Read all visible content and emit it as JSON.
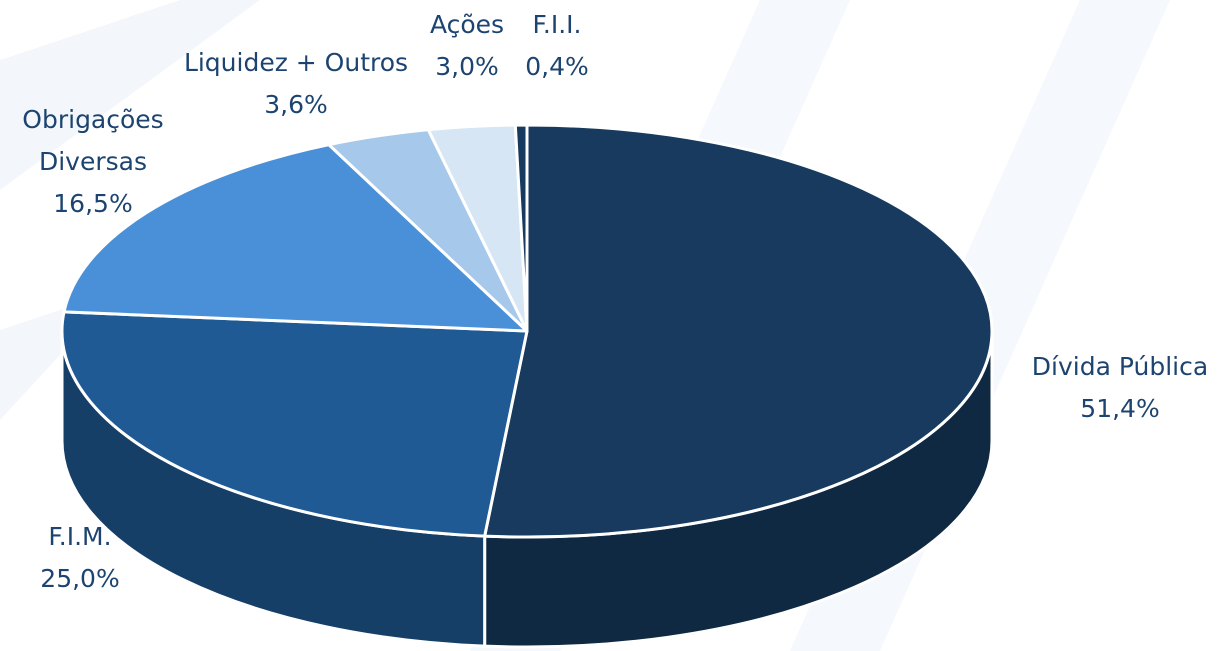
{
  "chart_data": {
    "type": "pie3d",
    "categories": [
      "Dívida Pública",
      "F.I.M.",
      "Obrigações Diversas",
      "Liquidez + Outros",
      "Ações",
      "F.I.I."
    ],
    "values": [
      51.4,
      25.0,
      16.5,
      3.6,
      3.0,
      0.4
    ],
    "value_labels": [
      "51,4%",
      "25,0%",
      "16,5%",
      "3,6%",
      "3,0%",
      "0,4%"
    ],
    "colors": [
      "#173a5e",
      "#1f5a94",
      "#4a90d9",
      "#a6c8ea",
      "#d6e6f5",
      "#173a5e"
    ]
  }
}
